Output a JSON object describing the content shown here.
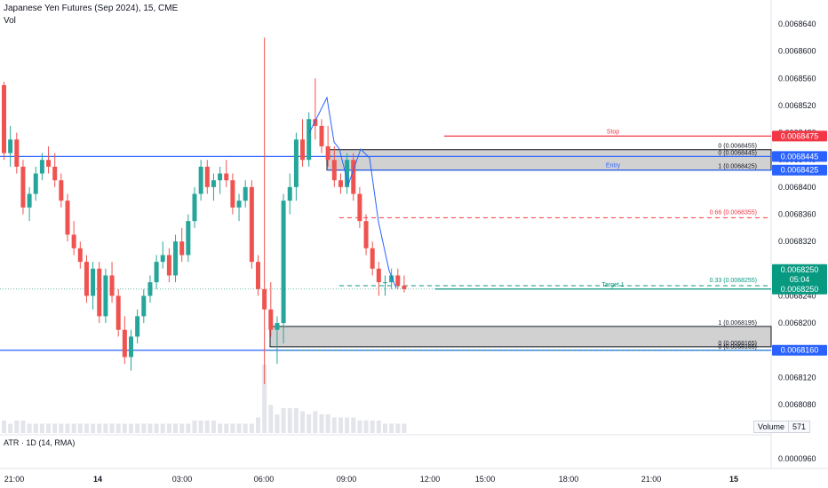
{
  "header": {
    "symbol_line": "Japanese Yen Futures (Sep 2024), 15, CME",
    "vol_label": "Vol"
  },
  "atr": {
    "label": "ATR · 1D (14, RMA)",
    "value": "0.0000960"
  },
  "volume": {
    "label": "Volume",
    "value": "571"
  },
  "colors": {
    "up": "#26a69a",
    "down": "#ef5350",
    "stop": "#f23645",
    "entry": "#2962ff",
    "target": "#089981",
    "dashed_red": "#f23645",
    "zone_fill": "#d1d1d1",
    "zone_border": "#131722"
  },
  "chart_data": {
    "type": "candlestick",
    "y_tick_labels": [
      "0.0068640",
      "0.0068600",
      "0.0068560",
      "0.0068520",
      "0.0068480",
      "0.0068440",
      "0.0068400",
      "0.0068360",
      "0.0068320",
      "0.0068280",
      "0.0068240",
      "0.0068200",
      "0.0068160",
      "0.0068120",
      "0.0068080"
    ],
    "x_tick_labels": [
      "21:00",
      "14",
      "03:00",
      "06:00",
      "09:00",
      "12:00",
      "15:00",
      "18:00",
      "21:00",
      "15"
    ],
    "price_tags": [
      {
        "label": "0.0068475",
        "kind": "stop"
      },
      {
        "label": "0.0068445",
        "kind": "entry"
      },
      {
        "label": "0.0068425",
        "kind": "entry"
      },
      {
        "label": "0.0068250",
        "kind": "last"
      },
      {
        "label": "05:04",
        "kind": "last"
      },
      {
        "label": "0.0068250",
        "kind": "target"
      },
      {
        "label": "0.0068160",
        "kind": "entry"
      }
    ],
    "levels": [
      {
        "name": "Stop",
        "price": 0.0068475
      },
      {
        "name": "Entry",
        "price": 0.0068425
      },
      {
        "name": "Target 1",
        "price": 0.006825
      }
    ],
    "annotations": [
      "0 (0.0068455)",
      "0 (0.0068445)",
      "1 (0.0068425)",
      "0.66 (0.0068355)",
      "0.33 (0.0068255)",
      "1 (0.0068195)",
      "0 (0.0068165)",
      "0 (0.0068165)"
    ],
    "horizontal_lines": [
      0.0068445,
      0.006816
    ],
    "zones": [
      {
        "top": 0.0068455,
        "bottom": 0.0068425
      },
      {
        "top": 0.0068195,
        "bottom": 0.0068165
      }
    ],
    "candles": [
      [
        0.006855,
        0.0068555,
        0.006844,
        0.006845
      ],
      [
        0.006845,
        0.006849,
        0.006843,
        0.006847
      ],
      [
        0.006847,
        0.006848,
        0.006842,
        0.006843
      ],
      [
        0.006843,
        0.006844,
        0.006836,
        0.006837
      ],
      [
        0.006837,
        0.00684,
        0.006835,
        0.006839
      ],
      [
        0.006839,
        0.006843,
        0.006838,
        0.006842
      ],
      [
        0.006842,
        0.006845,
        0.006841,
        0.006844
      ],
      [
        0.006844,
        0.006846,
        0.006842,
        0.006843
      ],
      [
        0.006843,
        0.006845,
        0.00684,
        0.006841
      ],
      [
        0.006841,
        0.006842,
        0.006837,
        0.006838
      ],
      [
        0.006838,
        0.006839,
        0.006832,
        0.006833
      ],
      [
        0.006833,
        0.006835,
        0.00683,
        0.006831
      ],
      [
        0.006831,
        0.006832,
        0.006828,
        0.006829
      ],
      [
        0.006829,
        0.00683,
        0.006823,
        0.006824
      ],
      [
        0.006824,
        0.006829,
        0.006822,
        0.006828
      ],
      [
        0.006828,
        0.006829,
        0.00682,
        0.006821
      ],
      [
        0.006821,
        0.006828,
        0.00682,
        0.006827
      ],
      [
        0.006827,
        0.006829,
        0.006823,
        0.006824
      ],
      [
        0.006824,
        0.006825,
        0.006818,
        0.006819
      ],
      [
        0.006819,
        0.006821,
        0.006814,
        0.006815
      ],
      [
        0.006815,
        0.006819,
        0.006813,
        0.006818
      ],
      [
        0.006818,
        0.006822,
        0.006817,
        0.006821
      ],
      [
        0.006821,
        0.006825,
        0.00682,
        0.006824
      ],
      [
        0.006824,
        0.006827,
        0.006823,
        0.006826
      ],
      [
        0.006826,
        0.00683,
        0.006825,
        0.006829
      ],
      [
        0.006829,
        0.006832,
        0.006828,
        0.00683
      ],
      [
        0.00683,
        0.006831,
        0.006826,
        0.006827
      ],
      [
        0.006827,
        0.006833,
        0.006826,
        0.006832
      ],
      [
        0.006832,
        0.006834,
        0.006829,
        0.00683
      ],
      [
        0.00683,
        0.006836,
        0.006829,
        0.006835
      ],
      [
        0.006835,
        0.00684,
        0.006834,
        0.006839
      ],
      [
        0.006839,
        0.006844,
        0.006838,
        0.006843
      ],
      [
        0.006843,
        0.006844,
        0.006839,
        0.00684
      ],
      [
        0.00684,
        0.006842,
        0.006838,
        0.006841
      ],
      [
        0.006841,
        0.006843,
        0.006839,
        0.006842
      ],
      [
        0.006842,
        0.006844,
        0.00684,
        0.006841
      ],
      [
        0.006841,
        0.006842,
        0.006836,
        0.006837
      ],
      [
        0.006837,
        0.006839,
        0.006835,
        0.006838
      ],
      [
        0.006838,
        0.006841,
        0.006837,
        0.00684
      ],
      [
        0.00684,
        0.006841,
        0.006828,
        0.006829
      ],
      [
        0.006829,
        0.00683,
        0.006824,
        0.006825
      ],
      [
        0.006825,
        0.006862,
        0.006811,
        0.006822
      ],
      [
        0.006822,
        0.006826,
        0.006818,
        0.006819
      ],
      [
        0.006819,
        0.006821,
        0.006814,
        0.00682
      ],
      [
        0.00682,
        0.006839,
        0.006817,
        0.006838
      ],
      [
        0.006838,
        0.006842,
        0.006836,
        0.00684
      ],
      [
        0.00684,
        0.006848,
        0.006838,
        0.006847
      ],
      [
        0.006847,
        0.00685,
        0.006843,
        0.006844
      ],
      [
        0.006844,
        0.006851,
        0.006843,
        0.00685
      ],
      [
        0.00685,
        0.006856,
        0.006847,
        0.006849
      ],
      [
        0.006849,
        0.00685,
        0.006845,
        0.006846
      ],
      [
        0.006846,
        0.006849,
        0.006843,
        0.006844
      ],
      [
        0.006844,
        0.006846,
        0.00684,
        0.006841
      ],
      [
        0.006841,
        0.006842,
        0.006839,
        0.00684
      ],
      [
        0.00684,
        0.006845,
        0.006839,
        0.006844
      ],
      [
        0.006844,
        0.006845,
        0.006838,
        0.006839
      ],
      [
        0.006839,
        0.00684,
        0.006834,
        0.006835
      ],
      [
        0.006835,
        0.006836,
        0.00683,
        0.006831
      ],
      [
        0.006831,
        0.006832,
        0.006827,
        0.006828
      ],
      [
        0.006828,
        0.006829,
        0.006824,
        0.006826
      ],
      [
        0.006826,
        0.006827,
        0.006824,
        0.006826
      ],
      [
        0.006826,
        0.006828,
        0.006825,
        0.006827
      ],
      [
        0.006827,
        0.006828,
        0.006825,
        0.0068255
      ],
      [
        0.0068255,
        0.006827,
        0.0068245,
        0.006825
      ]
    ],
    "volumes": [
      4,
      3,
      4,
      4,
      3,
      3,
      3,
      3,
      3,
      3,
      3,
      3,
      3,
      3,
      3,
      3,
      3,
      3,
      3,
      3,
      3,
      3,
      3,
      3,
      3,
      3,
      3,
      3,
      3,
      3,
      4,
      4,
      4,
      4,
      3,
      3,
      3,
      3,
      3,
      3,
      5,
      22,
      9,
      6,
      8,
      8,
      8,
      7,
      6,
      7,
      6,
      6,
      5,
      5,
      5,
      5,
      4,
      4,
      4,
      4,
      3,
      3,
      3,
      3
    ]
  }
}
